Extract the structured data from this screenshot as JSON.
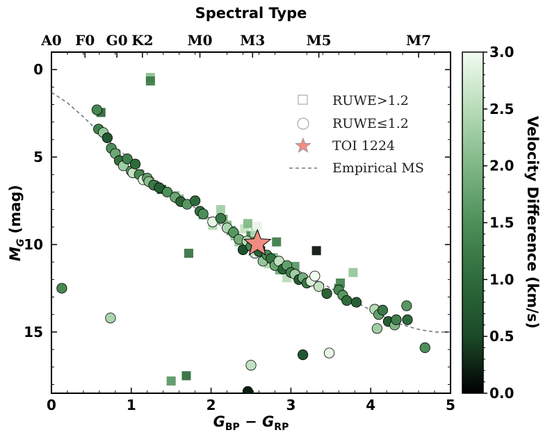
{
  "chart_data": {
    "type": "scatter",
    "title": "",
    "xlabel_main": "G",
    "xlabel_sub1": "BP",
    "xlabel_minus": " − ",
    "xlabel_sub2": "RP",
    "ylabel_main": "M",
    "ylabel_sub": "G",
    "ylabel_unit": " (mag)",
    "top_axis_title": "Spectral Type",
    "xlim": [
      0,
      5
    ],
    "ylim": [
      18.5,
      -1
    ],
    "x_ticks": [
      0,
      1,
      2,
      3,
      4,
      5
    ],
    "y_ticks": [
      0,
      5,
      10,
      15
    ],
    "spectral_types": [
      {
        "label": "A0",
        "x": 0.0
      },
      {
        "label": "F0",
        "x": 0.42
      },
      {
        "label": "G0",
        "x": 0.82
      },
      {
        "label": "K2",
        "x": 1.14
      },
      {
        "label": "M0",
        "x": 1.86
      },
      {
        "label": "M3",
        "x": 2.52
      },
      {
        "label": "M5",
        "x": 3.35
      },
      {
        "label": "M7",
        "x": 4.6
      }
    ],
    "colorbar": {
      "label": "Velocity Difference (km/s)",
      "min": 0.0,
      "max": 3.0,
      "ticks": [
        0.0,
        0.5,
        1.0,
        1.5,
        2.0,
        2.5,
        3.0
      ],
      "tick_labels": [
        "0.0",
        "0.5",
        "1.0",
        "1.5",
        "2.0",
        "2.5",
        "3.0"
      ],
      "colors": [
        "#000000",
        "#1a4a28",
        "#2e6b3b",
        "#4d8f59",
        "#7fb786",
        "#b6dcb7",
        "#f2fbf0"
      ]
    },
    "legend": {
      "placement": "upper-right",
      "entries": [
        {
          "label": "RUWE>1.2",
          "marker": "square"
        },
        {
          "label": "RUWE≤1.2",
          "marker": "circle"
        },
        {
          "label": "TOI 1224",
          "marker": "star"
        },
        {
          "label": "Empirical MS",
          "marker": "dashed-line"
        }
      ]
    },
    "empirical_ms": {
      "color": "#777777",
      "x": [
        0.0,
        0.2,
        0.4,
        0.6,
        0.8,
        1.0,
        1.2,
        1.4,
        1.6,
        1.8,
        2.0,
        2.2,
        2.4,
        2.6,
        2.8,
        3.0,
        3.2,
        3.4,
        3.6,
        3.8,
        4.0,
        4.2,
        4.4,
        4.6,
        4.8,
        5.0
      ],
      "y": [
        1.3,
        1.9,
        2.7,
        3.6,
        4.4,
        5.2,
        5.95,
        6.6,
        7.25,
        7.9,
        8.55,
        9.15,
        9.7,
        10.25,
        10.8,
        11.3,
        11.75,
        12.25,
        12.75,
        13.25,
        13.75,
        14.2,
        14.6,
        14.85,
        15.0,
        15.0
      ]
    },
    "toi_1224": {
      "x": 2.58,
      "y": 9.95,
      "color": "#f28b82"
    },
    "series_circles": {
      "name": "RUWE≤1.2",
      "points": [
        [
          0.57,
          2.3,
          1.4
        ],
        [
          0.59,
          3.4,
          1.3
        ],
        [
          0.65,
          3.6,
          2.2
        ],
        [
          0.7,
          3.9,
          0.7
        ],
        [
          0.75,
          4.5,
          1.5
        ],
        [
          0.8,
          4.8,
          1.8
        ],
        [
          0.85,
          5.2,
          1.1
        ],
        [
          0.9,
          5.5,
          2.3
        ],
        [
          0.95,
          5.1,
          1.3
        ],
        [
          1.0,
          5.8,
          1.6
        ],
        [
          1.02,
          5.9,
          2.6
        ],
        [
          1.05,
          5.4,
          1.0
        ],
        [
          1.1,
          6.0,
          1.4
        ],
        [
          1.15,
          6.3,
          2.8
        ],
        [
          1.2,
          6.2,
          1.7
        ],
        [
          1.22,
          6.4,
          2.1
        ],
        [
          1.28,
          6.6,
          1.2
        ],
        [
          1.35,
          6.75,
          0.8
        ],
        [
          1.45,
          7.0,
          1.5
        ],
        [
          1.55,
          7.3,
          1.8
        ],
        [
          1.62,
          7.55,
          0.9
        ],
        [
          1.7,
          7.7,
          1.6
        ],
        [
          1.8,
          7.5,
          1.0
        ],
        [
          1.86,
          8.1,
          1.1
        ],
        [
          1.9,
          8.25,
          1.5
        ],
        [
          2.02,
          8.7,
          2.9
        ],
        [
          2.12,
          8.5,
          1.2
        ],
        [
          2.2,
          9.05,
          2.4
        ],
        [
          2.28,
          9.3,
          1.6
        ],
        [
          2.35,
          9.7,
          1.9
        ],
        [
          2.4,
          10.3,
          0.6
        ],
        [
          2.45,
          9.8,
          2.5
        ],
        [
          2.5,
          10.1,
          1.4
        ],
        [
          2.55,
          10.5,
          2.7
        ],
        [
          2.6,
          10.4,
          0.9
        ],
        [
          2.65,
          10.95,
          2.2
        ],
        [
          2.7,
          10.6,
          1.5
        ],
        [
          2.75,
          10.8,
          1.1
        ],
        [
          2.8,
          11.2,
          1.8
        ],
        [
          2.85,
          10.95,
          2.6
        ],
        [
          2.9,
          11.4,
          0.9
        ],
        [
          2.95,
          11.2,
          1.7
        ],
        [
          3.0,
          11.6,
          1.3
        ],
        [
          3.05,
          11.7,
          2.3
        ],
        [
          3.1,
          12.0,
          0.8
        ],
        [
          3.15,
          11.9,
          1.9
        ],
        [
          3.2,
          12.2,
          1.2
        ],
        [
          3.25,
          12.1,
          2.8
        ],
        [
          3.3,
          11.8,
          3.0
        ],
        [
          3.35,
          12.4,
          2.6
        ],
        [
          3.45,
          12.8,
          0.9
        ],
        [
          3.6,
          12.6,
          1.4
        ],
        [
          3.65,
          12.9,
          1.6
        ],
        [
          3.7,
          13.2,
          1.0
        ],
        [
          3.82,
          13.3,
          0.8
        ],
        [
          4.05,
          13.7,
          2.5
        ],
        [
          4.1,
          14.0,
          1.7
        ],
        [
          4.15,
          13.75,
          1.2
        ],
        [
          4.22,
          14.4,
          0.8
        ],
        [
          4.3,
          14.6,
          2.0
        ],
        [
          4.32,
          14.3,
          1.3
        ],
        [
          4.45,
          13.5,
          1.6
        ],
        [
          4.46,
          14.3,
          1.0
        ],
        [
          4.08,
          14.8,
          2.3
        ],
        [
          4.68,
          15.9,
          1.5
        ],
        [
          0.13,
          12.5,
          1.4
        ],
        [
          0.74,
          14.2,
          2.4
        ],
        [
          2.5,
          16.9,
          2.6
        ],
        [
          3.48,
          16.2,
          2.9
        ],
        [
          3.15,
          16.3,
          0.7
        ],
        [
          2.46,
          18.4,
          0.2
        ]
      ]
    },
    "series_squares": {
      "name": "RUWE>1.2",
      "points": [
        [
          1.24,
          0.45,
          2.1
        ],
        [
          1.24,
          0.65,
          1.2
        ],
        [
          0.62,
          2.45,
          0.9
        ],
        [
          1.38,
          6.85,
          0.5
        ],
        [
          1.55,
          7.2,
          2.2
        ],
        [
          1.6,
          7.4,
          1.9
        ],
        [
          1.72,
          10.5,
          1.1
        ],
        [
          1.9,
          8.3,
          1.6
        ],
        [
          2.02,
          8.9,
          2.4
        ],
        [
          2.12,
          8.0,
          2.3
        ],
        [
          2.15,
          8.55,
          1.7
        ],
        [
          2.2,
          8.9,
          2.0
        ],
        [
          2.25,
          9.2,
          1.5
        ],
        [
          2.3,
          9.5,
          2.1
        ],
        [
          2.35,
          9.85,
          2.2
        ],
        [
          2.42,
          9.1,
          2.6
        ],
        [
          2.46,
          8.8,
          2.0
        ],
        [
          2.5,
          9.5,
          1.3
        ],
        [
          2.55,
          9.3,
          2.5
        ],
        [
          2.58,
          8.95,
          2.9
        ],
        [
          2.62,
          10.35,
          0.1
        ],
        [
          2.68,
          10.6,
          2.2
        ],
        [
          2.72,
          11.1,
          2.4
        ],
        [
          2.78,
          10.75,
          1.9
        ],
        [
          2.82,
          9.85,
          1.2
        ],
        [
          2.86,
          11.45,
          1.8
        ],
        [
          2.95,
          11.9,
          2.5
        ],
        [
          3.05,
          11.25,
          1.6
        ],
        [
          3.32,
          10.35,
          0.1
        ],
        [
          3.6,
          12.5,
          1.2
        ],
        [
          3.62,
          12.2,
          1.3
        ],
        [
          3.78,
          11.6,
          2.2
        ],
        [
          1.5,
          17.8,
          1.6
        ],
        [
          1.69,
          17.5,
          1.0
        ],
        [
          2.48,
          18.6,
          0.5
        ]
      ]
    }
  }
}
